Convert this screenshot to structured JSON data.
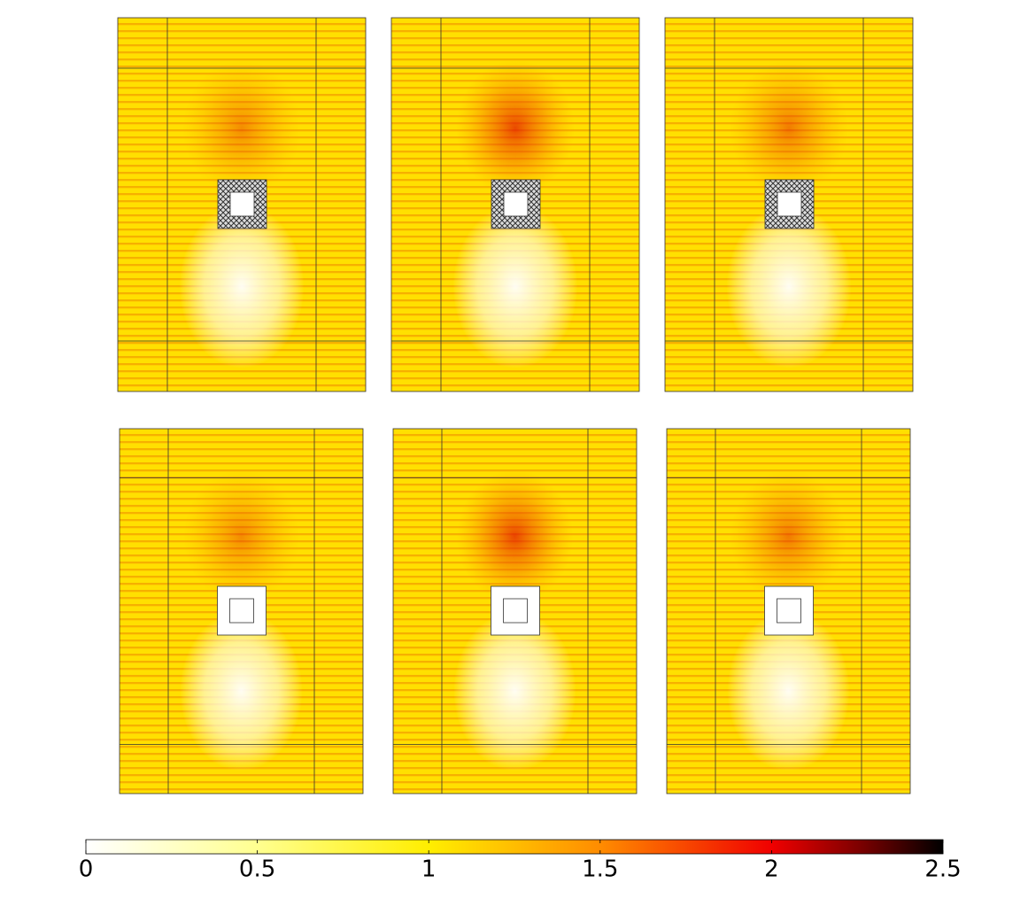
{
  "chart_data": {
    "type": "heatmap",
    "clim": [
      0,
      2.5
    ],
    "cticks": [
      0,
      0.5,
      1,
      1.5,
      2,
      2.5
    ]
  }
}
